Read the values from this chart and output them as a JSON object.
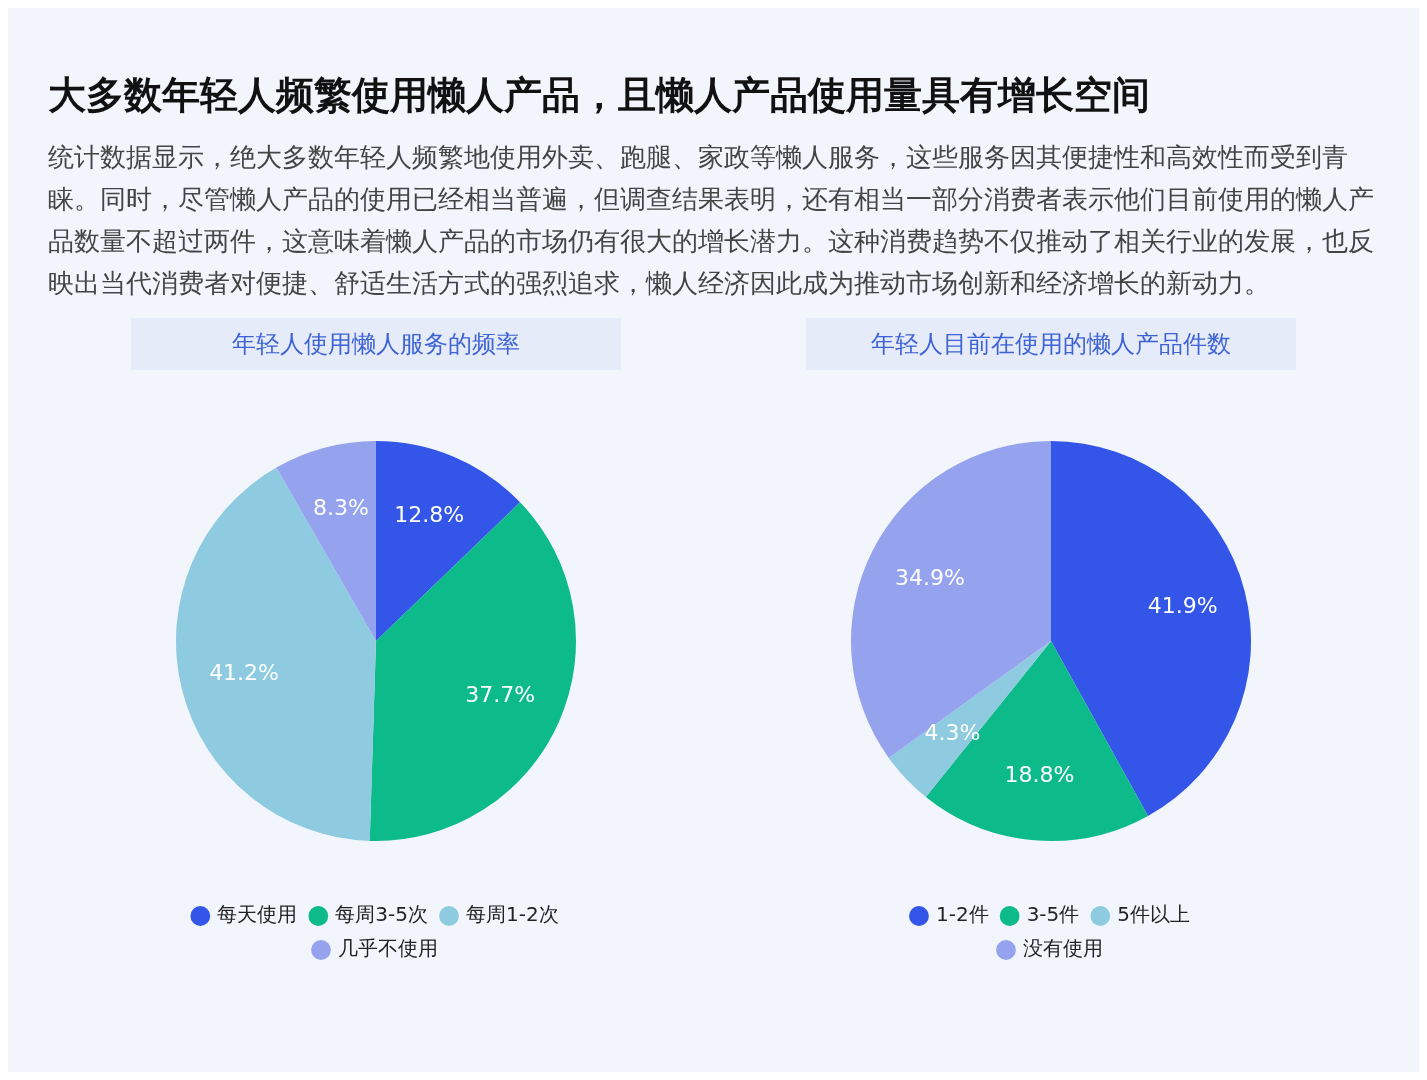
{
  "chart_data": [
    {
      "type": "other",
      "title": "大多数年轻人频繁使用懒人产品，且懒人产品使用量具有增长空间",
      "subtitle": "统计数据显示，绝大多数年轻人频繁地使用外卖、跑腿、家政等懒人服务，这些服务因其便捷性和高效性而受到青睐。同时，尽管懒人产品的使用已经相当普遍，但调查结果表明，还有相当一部分消费者表示他们目前使用的懒人产品数量不超过两件，这意味着懒人产品的市场仍有很大的增长潜力。这种消费趋势不仅推动了相关行业的发展，也反映出当代消费者对便捷、舒适生活方式的强烈追求，懒人经济因此成为推动市场创新和经济增长的新动力。"
    },
    {
      "type": "pie",
      "title": "年轻人使用懒人服务的频率",
      "categories": [
        "每天使用",
        "每周3-5次",
        "每周1-2次",
        "几乎不使用"
      ],
      "values": [
        12.8,
        37.7,
        41.2,
        8.3
      ],
      "colors": [
        "#3355e8",
        "#0dba8a",
        "#8ecae0",
        "#95a3ef"
      ],
      "value_labels": [
        "12.8%",
        "37.7%",
        "41.2%",
        "8.3%"
      ],
      "legend": "bottom"
    },
    {
      "type": "pie",
      "title": "年轻人目前在使用的懒人产品件数",
      "categories": [
        "1-2件",
        "3-5件",
        "5件以上",
        "没有使用"
      ],
      "values": [
        41.9,
        18.8,
        4.3,
        34.9
      ],
      "colors": [
        "#3355e8",
        "#0dba8a",
        "#8ecae0",
        "#95a3ef"
      ],
      "value_labels": [
        "41.9%",
        "18.8%",
        "4.3%",
        "34.9%"
      ],
      "legend": "bottom"
    }
  ]
}
